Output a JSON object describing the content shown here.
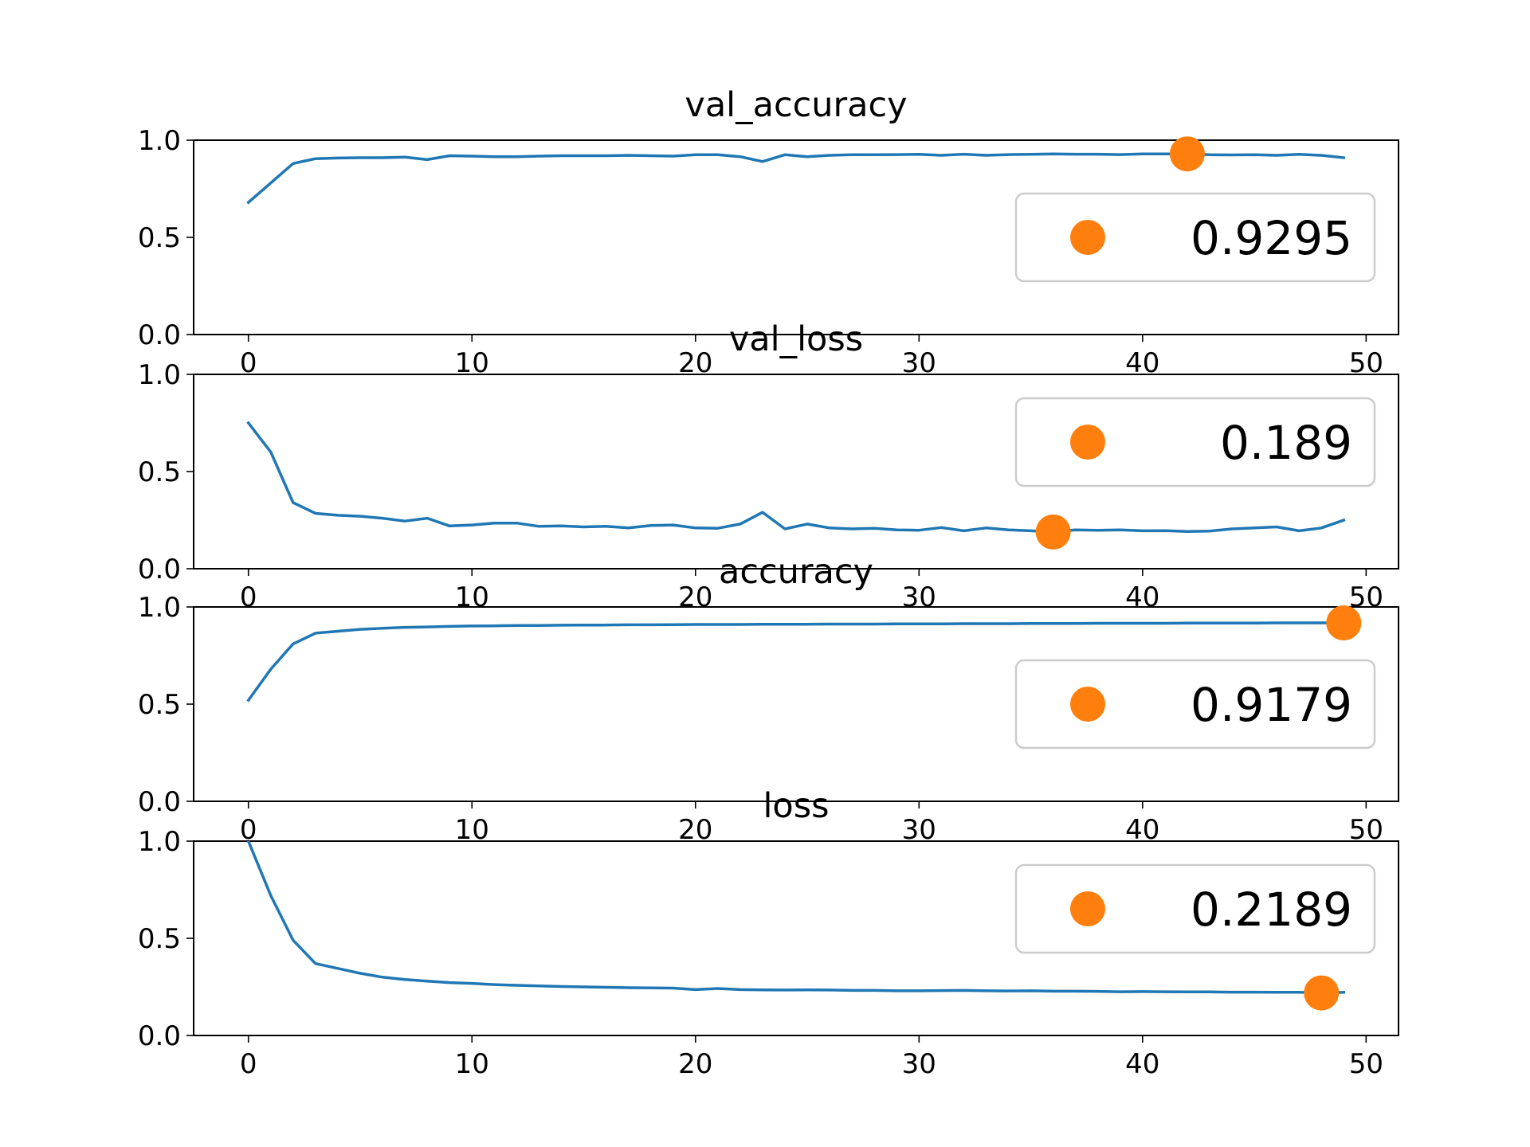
{
  "colors": {
    "line": "#1f77b4",
    "marker": "#ff7f0e",
    "axes": "#000000",
    "legend_border": "#cccccc",
    "background": "#ffffff"
  },
  "chart_data": [
    {
      "type": "line",
      "title": "val_accuracy",
      "xlim": [
        -2.45,
        51.45
      ],
      "ylim": [
        0,
        1
      ],
      "xticks": [
        0,
        10,
        20,
        30,
        40,
        50
      ],
      "yticks": [
        "0.0",
        "0.5",
        "1.0"
      ],
      "grid": false,
      "legend_position": "center-right",
      "series": [
        {
          "values": [
            0.68,
            0.78,
            0.88,
            0.905,
            0.908,
            0.91,
            0.91,
            0.913,
            0.9,
            0.92,
            0.918,
            0.915,
            0.915,
            0.918,
            0.92,
            0.92,
            0.92,
            0.922,
            0.92,
            0.918,
            0.925,
            0.925,
            0.915,
            0.89,
            0.925,
            0.915,
            0.922,
            0.925,
            0.925,
            0.926,
            0.927,
            0.922,
            0.928,
            0.922,
            0.926,
            0.927,
            0.929,
            0.928,
            0.928,
            0.926,
            0.929,
            0.929,
            0.9295,
            0.925,
            0.924,
            0.925,
            0.922,
            0.927,
            0.922,
            0.91
          ]
        }
      ],
      "marker": {
        "x": 42,
        "y": 0.9295,
        "label": "0.9295"
      }
    },
    {
      "type": "line",
      "title": "val_loss",
      "xlim": [
        -2.45,
        51.45
      ],
      "ylim": [
        0,
        1
      ],
      "xticks": [
        0,
        10,
        20,
        30,
        40,
        50
      ],
      "yticks": [
        "0.0",
        "0.5",
        "1.0"
      ],
      "grid": false,
      "legend_position": "upper-right",
      "series": [
        {
          "values": [
            0.75,
            0.6,
            0.34,
            0.285,
            0.275,
            0.27,
            0.26,
            0.245,
            0.26,
            0.22,
            0.225,
            0.235,
            0.235,
            0.218,
            0.22,
            0.215,
            0.218,
            0.21,
            0.222,
            0.225,
            0.21,
            0.208,
            0.23,
            0.29,
            0.205,
            0.23,
            0.21,
            0.205,
            0.208,
            0.2,
            0.198,
            0.212,
            0.195,
            0.21,
            0.2,
            0.195,
            0.189,
            0.2,
            0.198,
            0.2,
            0.195,
            0.196,
            0.192,
            0.194,
            0.205,
            0.21,
            0.215,
            0.195,
            0.21,
            0.25
          ]
        }
      ],
      "marker": {
        "x": 36,
        "y": 0.189,
        "label": "0.189"
      }
    },
    {
      "type": "line",
      "title": "accuracy",
      "xlim": [
        -2.45,
        51.45
      ],
      "ylim": [
        0,
        1
      ],
      "xticks": [
        0,
        10,
        20,
        30,
        40,
        50
      ],
      "yticks": [
        "0.0",
        "0.5",
        "1.0"
      ],
      "grid": false,
      "legend_position": "center-right",
      "series": [
        {
          "values": [
            0.52,
            0.68,
            0.81,
            0.865,
            0.875,
            0.885,
            0.89,
            0.895,
            0.897,
            0.9,
            0.902,
            0.903,
            0.905,
            0.905,
            0.906,
            0.907,
            0.907,
            0.908,
            0.908,
            0.909,
            0.91,
            0.91,
            0.91,
            0.911,
            0.911,
            0.911,
            0.912,
            0.912,
            0.912,
            0.913,
            0.913,
            0.913,
            0.914,
            0.914,
            0.914,
            0.915,
            0.915,
            0.915,
            0.916,
            0.916,
            0.916,
            0.916,
            0.917,
            0.917,
            0.917,
            0.917,
            0.918,
            0.918,
            0.918,
            0.9179
          ]
        }
      ],
      "marker": {
        "x": 49,
        "y": 0.9179,
        "label": "0.9179"
      }
    },
    {
      "type": "line",
      "title": "loss",
      "xlim": [
        -2.45,
        51.45
      ],
      "ylim": [
        0,
        1
      ],
      "xticks": [
        0,
        10,
        20,
        30,
        40,
        50
      ],
      "yticks": [
        "0.0",
        "0.5",
        "1.0"
      ],
      "grid": false,
      "legend_position": "upper-right",
      "series": [
        {
          "values": [
            1.0,
            0.72,
            0.49,
            0.37,
            0.345,
            0.32,
            0.3,
            0.288,
            0.28,
            0.272,
            0.268,
            0.262,
            0.258,
            0.255,
            0.252,
            0.25,
            0.248,
            0.246,
            0.245,
            0.244,
            0.236,
            0.242,
            0.236,
            0.235,
            0.234,
            0.235,
            0.234,
            0.232,
            0.232,
            0.23,
            0.23,
            0.231,
            0.232,
            0.23,
            0.229,
            0.23,
            0.228,
            0.228,
            0.227,
            0.225,
            0.226,
            0.225,
            0.224,
            0.224,
            0.223,
            0.223,
            0.222,
            0.222,
            0.2189,
            0.222
          ]
        }
      ],
      "marker": {
        "x": 48,
        "y": 0.2189,
        "label": "0.2189"
      }
    }
  ]
}
